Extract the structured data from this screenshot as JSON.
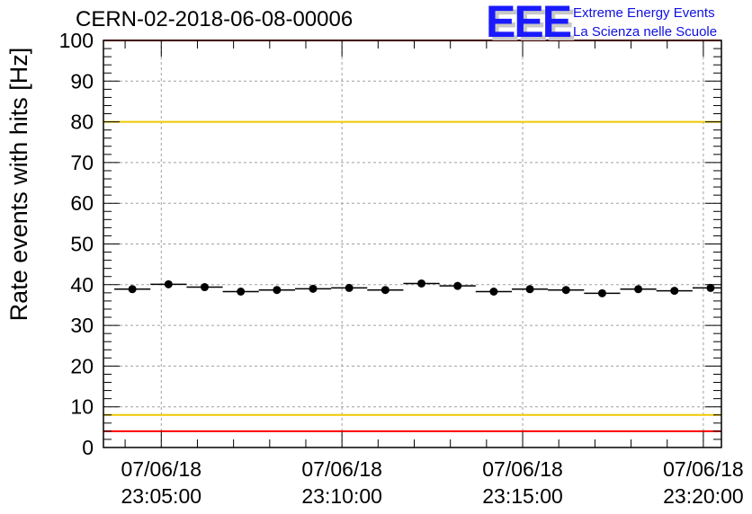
{
  "chart_data": {
    "type": "scatter",
    "title": "CERN-02-2018-06-08-00006",
    "ylabel": "Rate events with hits [Hz]",
    "xlabel": "",
    "ylim": [
      0,
      100
    ],
    "yticks": [
      0,
      10,
      20,
      30,
      40,
      50,
      60,
      70,
      80,
      90,
      100
    ],
    "xlim_minutes": [
      23.4,
      40.5
    ],
    "xticks": [
      {
        "date": "07/06/18",
        "time": "23:05:00",
        "minute": 25
      },
      {
        "date": "07/06/18",
        "time": "23:10:00",
        "minute": 30
      },
      {
        "date": "07/06/18",
        "time": "23:15:00",
        "minute": 35
      },
      {
        "date": "07/06/18",
        "time": "23:20:00",
        "minute": 40
      }
    ],
    "grid": true,
    "thresholds": [
      {
        "value": 100,
        "color": "#ff0000"
      },
      {
        "value": 80,
        "color": "#f0c800"
      },
      {
        "value": 8,
        "color": "#f0c800"
      },
      {
        "value": 4,
        "color": "#ff0000"
      }
    ],
    "bin_width_minutes": 1,
    "series": [
      {
        "x_minutes": [
          24.2,
          25.2,
          26.2,
          27.2,
          28.2,
          29.2,
          30.2,
          31.2,
          32.2,
          33.2,
          34.2,
          35.2,
          36.2,
          37.2,
          38.2,
          39.2,
          40.2
        ],
        "y": [
          38.9,
          40.1,
          39.4,
          38.3,
          38.7,
          39.0,
          39.2,
          38.7,
          40.3,
          39.7,
          38.3,
          38.9,
          38.7,
          37.9,
          38.9,
          38.5,
          39.2
        ],
        "color": "#000000"
      }
    ]
  },
  "logo": {
    "mark": "EEE",
    "line1": "Extreme Energy Events",
    "line2": "La Scienza nelle Scuole"
  }
}
